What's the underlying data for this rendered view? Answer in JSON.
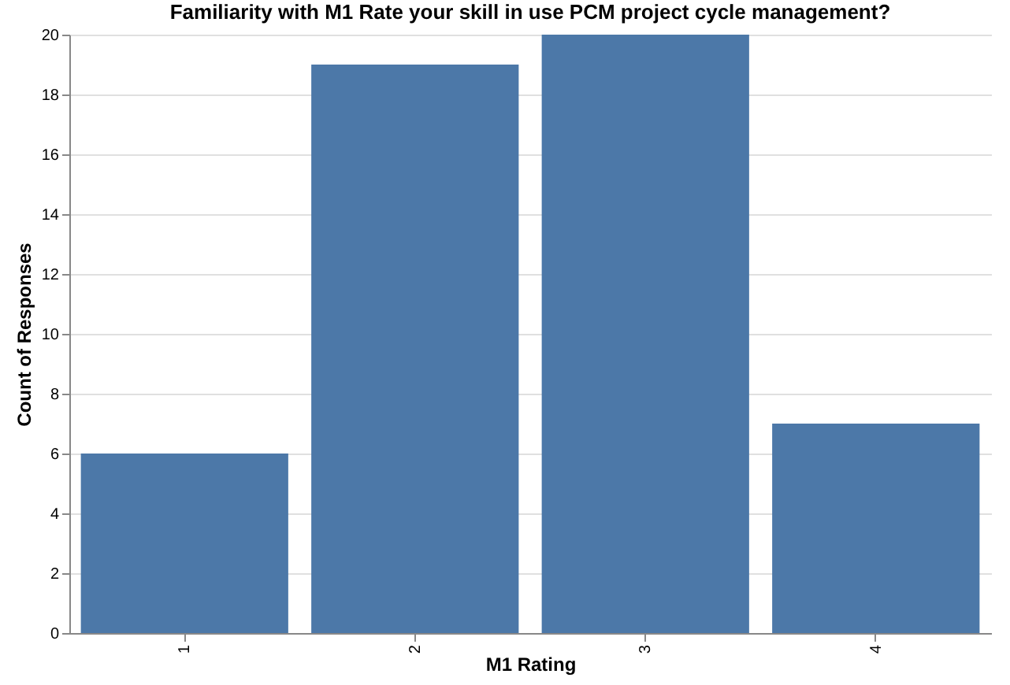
{
  "chart_data": {
    "type": "bar",
    "title": "Familiarity with M1 Rate  your skill in use PCM project cycle management?",
    "xlabel": "M1 Rating",
    "ylabel": "Count of Responses",
    "categories": [
      "1",
      "2",
      "3",
      "4"
    ],
    "values": [
      6,
      19,
      20,
      7
    ],
    "color": "#4c78a8",
    "ylim": [
      0,
      20
    ],
    "yticks": [
      0,
      2,
      4,
      6,
      8,
      10,
      12,
      14,
      16,
      18,
      20
    ],
    "grid": "y"
  }
}
